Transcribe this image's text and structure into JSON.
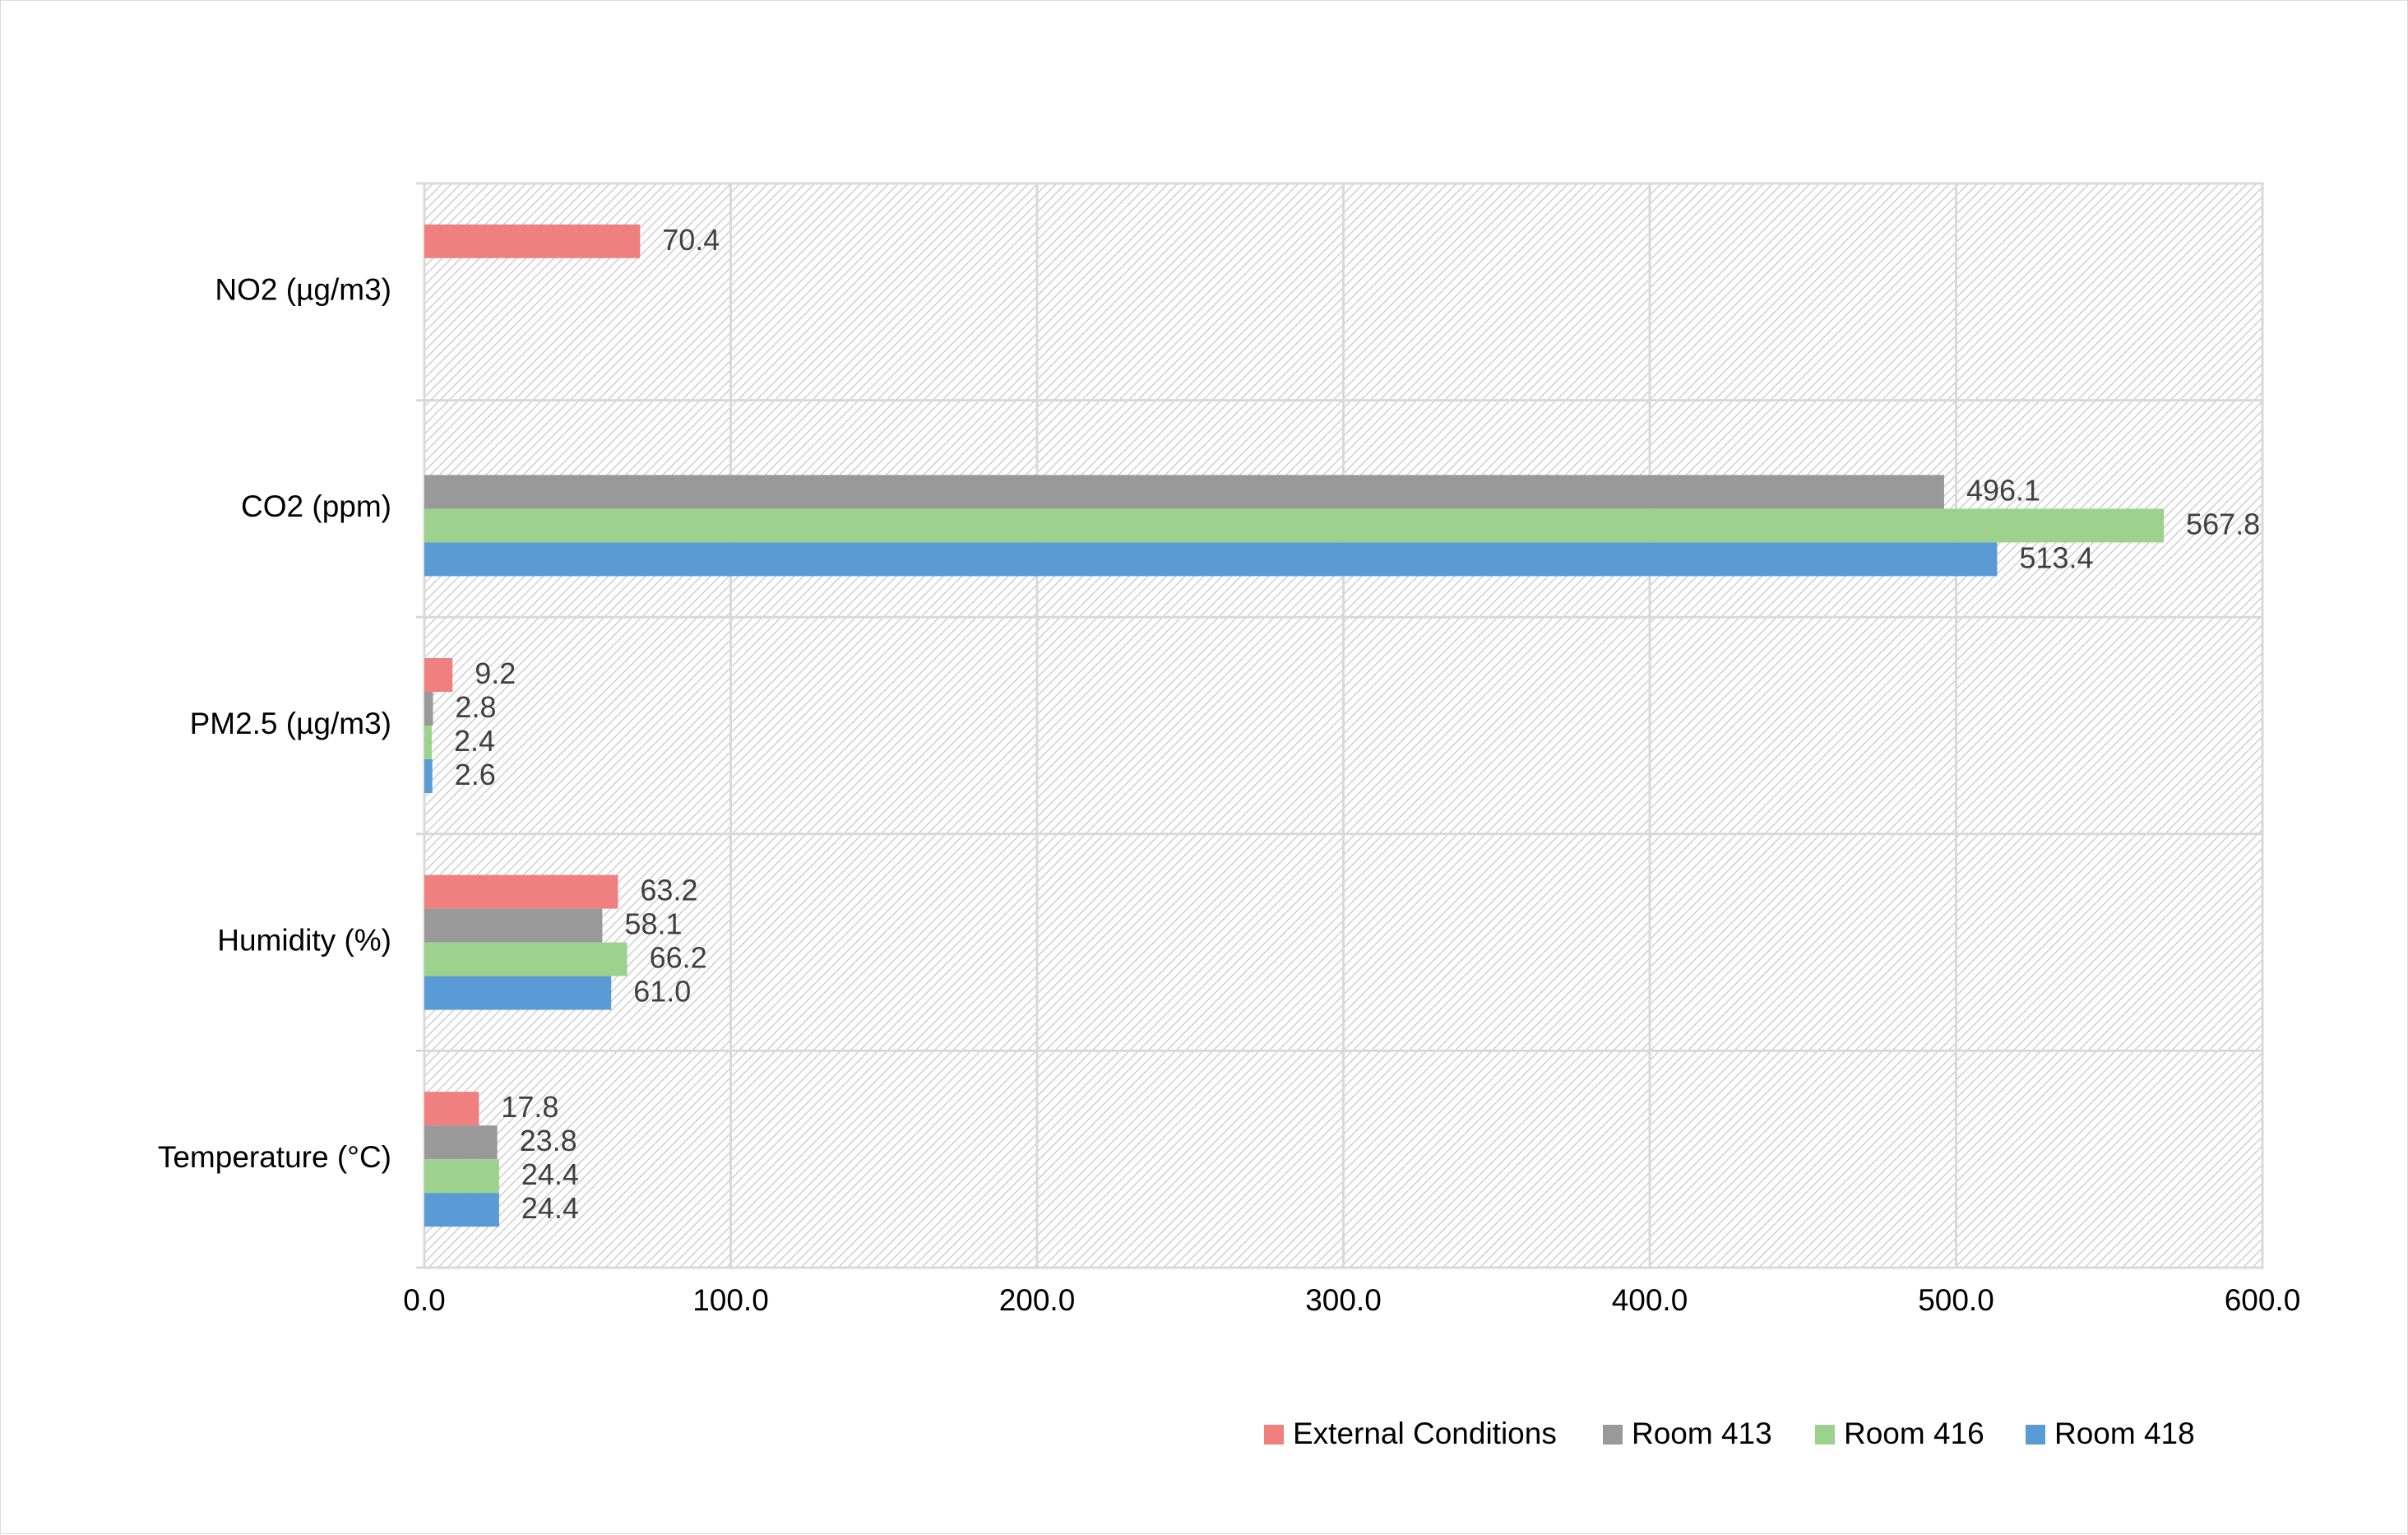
{
  "chart_data": {
    "type": "bar",
    "orientation": "horizontal",
    "categories": [
      "Temperature (°C)",
      "Humidity (%)",
      "PM2.5 (µg/m3)",
      "CO2 (ppm)",
      "NO2 (µg/m3)"
    ],
    "series": [
      {
        "name": "External Conditions",
        "color": "#f08080",
        "values": [
          17.8,
          63.2,
          9.2,
          null,
          70.4
        ],
        "labels": [
          "17.8",
          "63.2",
          "9.2",
          "",
          "70.4"
        ]
      },
      {
        "name": "Room 413",
        "color": "#999999",
        "values": [
          23.8,
          58.1,
          2.8,
          496.1,
          null
        ],
        "labels": [
          "23.8",
          "58.1",
          "2.8",
          "496.1",
          ""
        ]
      },
      {
        "name": "Room 416",
        "color": "#9dd18e",
        "values": [
          24.4,
          66.2,
          2.4,
          567.8,
          null
        ],
        "labels": [
          "24.4",
          "66.2",
          "2.4",
          "567.8",
          ""
        ]
      },
      {
        "name": "Room 418",
        "color": "#5b9bd5",
        "values": [
          24.4,
          61.0,
          2.6,
          513.4,
          null
        ],
        "labels": [
          "24.4",
          "61.0",
          "2.6",
          "513.4",
          ""
        ]
      }
    ],
    "x_ticks": [
      "0.0",
      "100.0",
      "200.0",
      "300.0",
      "400.0",
      "500.0",
      "600.0"
    ],
    "xlim": [
      0,
      600
    ],
    "title": "",
    "xlabel": "",
    "ylabel": "",
    "grid": true,
    "legend_position": "bottom-right",
    "background": "hatched"
  }
}
